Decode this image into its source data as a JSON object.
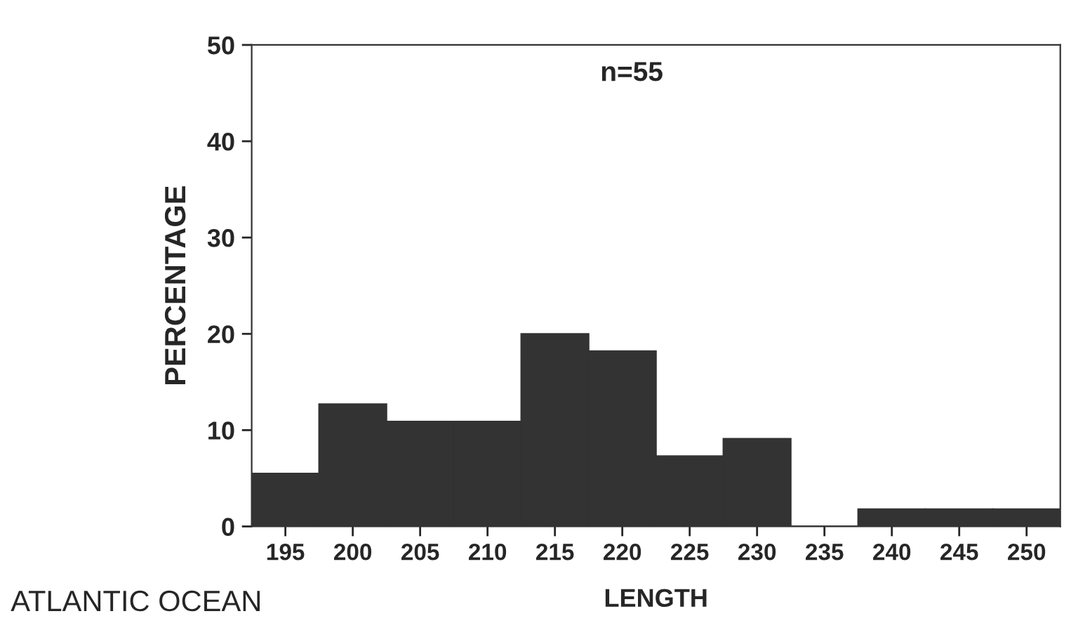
{
  "chart_data": {
    "type": "bar",
    "xlabel": "LENGTH",
    "ylabel": "PERCENTAGE",
    "categories": [
      "195",
      "200",
      "205",
      "210",
      "215",
      "220",
      "225",
      "230",
      "235",
      "240",
      "245",
      "250"
    ],
    "values": [
      5.5,
      12.7,
      10.9,
      10.9,
      20,
      18.2,
      7.3,
      9.1,
      0,
      1.8,
      1.8,
      1.8
    ],
    "color": "#333333",
    "ylim": [
      0,
      50
    ],
    "yticks": [
      0,
      10,
      20,
      30,
      40,
      50
    ],
    "grid": false,
    "annotations": [
      "n=55",
      "ATLANTIC OCEAN"
    ]
  }
}
